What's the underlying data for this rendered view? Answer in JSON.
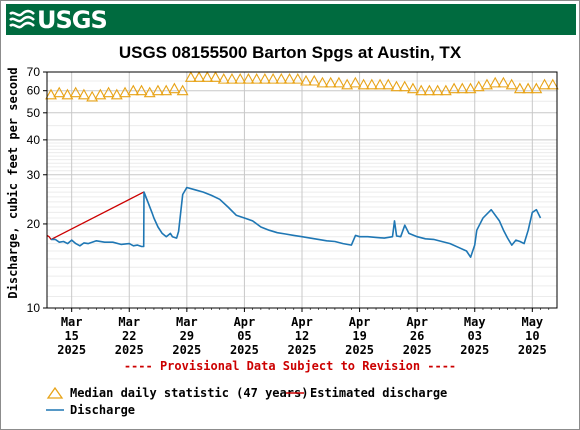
{
  "header": {
    "logo_text": "USGS"
  },
  "chart_data": {
    "type": "line",
    "title": "USGS 08155500 Barton Spgs at Austin, TX",
    "ylabel": "Discharge, cubic feet per second",
    "y_scale": "log",
    "ylim": [
      10,
      70
    ],
    "y_ticks": [
      {
        "value": 10,
        "label": "10"
      },
      {
        "value": 20,
        "label": "20"
      },
      {
        "value": 30,
        "label": "30"
      },
      {
        "value": 40,
        "label": "40"
      },
      {
        "value": 50,
        "label": "50"
      },
      {
        "value": 60,
        "label": "60"
      },
      {
        "value": 70,
        "label": "70"
      }
    ],
    "xlim": [
      "2025-03-12",
      "2025-05-13"
    ],
    "x_ticks": [
      {
        "date": "2025-03-15",
        "label": [
          "Mar",
          "15",
          "2025"
        ]
      },
      {
        "date": "2025-03-22",
        "label": [
          "Mar",
          "22",
          "2025"
        ]
      },
      {
        "date": "2025-03-29",
        "label": [
          "Mar",
          "29",
          "2025"
        ]
      },
      {
        "date": "2025-04-05",
        "label": [
          "Apr",
          "05",
          "2025"
        ]
      },
      {
        "date": "2025-04-12",
        "label": [
          "Apr",
          "12",
          "2025"
        ]
      },
      {
        "date": "2025-04-19",
        "label": [
          "Apr",
          "19",
          "2025"
        ]
      },
      {
        "date": "2025-04-26",
        "label": [
          "Apr",
          "26",
          "2025"
        ]
      },
      {
        "date": "2025-05-03",
        "label": [
          "May",
          "03",
          "2025"
        ]
      },
      {
        "date": "2025-05-10",
        "label": [
          "May",
          "10",
          "2025"
        ]
      }
    ],
    "grid": true,
    "annotation": "---- Provisional Data Subject to Revision ----",
    "series": [
      {
        "name": "Median daily statistic (47 years)",
        "kind": "median",
        "color": "#e8a317",
        "points": [
          [
            "2025-03-12",
            58
          ],
          [
            "2025-03-13",
            59
          ],
          [
            "2025-03-14",
            58
          ],
          [
            "2025-03-15",
            59
          ],
          [
            "2025-03-16",
            58
          ],
          [
            "2025-03-17",
            57
          ],
          [
            "2025-03-18",
            58
          ],
          [
            "2025-03-19",
            59
          ],
          [
            "2025-03-20",
            58
          ],
          [
            "2025-03-21",
            59
          ],
          [
            "2025-03-22",
            60
          ],
          [
            "2025-03-23",
            60
          ],
          [
            "2025-03-24",
            59
          ],
          [
            "2025-03-25",
            60
          ],
          [
            "2025-03-26",
            60
          ],
          [
            "2025-03-27",
            61
          ],
          [
            "2025-03-28",
            60
          ],
          [
            "2025-03-29",
            67
          ],
          [
            "2025-03-30",
            67
          ],
          [
            "2025-03-31",
            67
          ],
          [
            "2025-04-01",
            67
          ],
          [
            "2025-04-02",
            66
          ],
          [
            "2025-04-03",
            66
          ],
          [
            "2025-04-04",
            66
          ],
          [
            "2025-04-05",
            66
          ],
          [
            "2025-04-06",
            66
          ],
          [
            "2025-04-07",
            66
          ],
          [
            "2025-04-08",
            66
          ],
          [
            "2025-04-09",
            66
          ],
          [
            "2025-04-10",
            66
          ],
          [
            "2025-04-11",
            66
          ],
          [
            "2025-04-12",
            65
          ],
          [
            "2025-04-13",
            65
          ],
          [
            "2025-04-14",
            64
          ],
          [
            "2025-04-15",
            64
          ],
          [
            "2025-04-16",
            64
          ],
          [
            "2025-04-17",
            63
          ],
          [
            "2025-04-18",
            64
          ],
          [
            "2025-04-19",
            63
          ],
          [
            "2025-04-20",
            63
          ],
          [
            "2025-04-21",
            63
          ],
          [
            "2025-04-22",
            63
          ],
          [
            "2025-04-23",
            62
          ],
          [
            "2025-04-24",
            62
          ],
          [
            "2025-04-25",
            61
          ],
          [
            "2025-04-26",
            60
          ],
          [
            "2025-04-27",
            60
          ],
          [
            "2025-04-28",
            60
          ],
          [
            "2025-04-29",
            60
          ],
          [
            "2025-04-30",
            61
          ],
          [
            "2025-05-01",
            61
          ],
          [
            "2025-05-02",
            61
          ],
          [
            "2025-05-03",
            62
          ],
          [
            "2025-05-04",
            63
          ],
          [
            "2025-05-05",
            64
          ],
          [
            "2025-05-06",
            64
          ],
          [
            "2025-05-07",
            63
          ],
          [
            "2025-05-08",
            61
          ],
          [
            "2025-05-09",
            61
          ],
          [
            "2025-05-10",
            61
          ],
          [
            "2025-05-11",
            63
          ],
          [
            "2025-05-12",
            63
          ]
        ]
      },
      {
        "name": "Estimated discharge",
        "kind": "estimated",
        "color": "#cc0000",
        "points": [
          [
            "2025-03-12T00:00",
            18.2
          ],
          [
            "2025-03-12T06:00",
            18.0
          ],
          [
            "2025-03-12T12:00",
            17.6
          ],
          [
            "2025-03-23T18:00",
            26.0
          ],
          [
            "2025-03-24T00:00",
            25.0
          ],
          [
            "2025-03-24T06:00",
            24.0
          ]
        ]
      },
      {
        "name": "Discharge",
        "kind": "observed",
        "color": "#1f77b4",
        "points": [
          [
            "2025-03-12T12:00",
            17.6
          ],
          [
            "2025-03-13",
            17.6
          ],
          [
            "2025-03-13T12:00",
            17.2
          ],
          [
            "2025-03-14",
            17.3
          ],
          [
            "2025-03-14T12:00",
            17.0
          ],
          [
            "2025-03-15",
            17.5
          ],
          [
            "2025-03-15T12:00",
            17.0
          ],
          [
            "2025-03-16",
            16.7
          ],
          [
            "2025-03-16T12:00",
            17.1
          ],
          [
            "2025-03-17",
            17.0
          ],
          [
            "2025-03-18",
            17.4
          ],
          [
            "2025-03-19",
            17.2
          ],
          [
            "2025-03-20",
            17.2
          ],
          [
            "2025-03-21",
            16.9
          ],
          [
            "2025-03-22",
            17.0
          ],
          [
            "2025-03-22T12:00",
            16.7
          ],
          [
            "2025-03-23",
            16.8
          ],
          [
            "2025-03-23T12:00",
            16.6
          ],
          [
            "2025-03-23T18:00",
            16.6
          ],
          [
            "2025-03-23T19:00",
            26.0
          ],
          [
            "2025-03-24T06:00",
            24.0
          ],
          [
            "2025-03-24T18:00",
            22.0
          ],
          [
            "2025-03-25",
            21.0
          ],
          [
            "2025-03-25T12:00",
            19.5
          ],
          [
            "2025-03-26",
            18.5
          ],
          [
            "2025-03-26T12:00",
            18.0
          ],
          [
            "2025-03-27",
            18.5
          ],
          [
            "2025-03-27T06:00",
            18.0
          ],
          [
            "2025-03-27T18:00",
            17.8
          ],
          [
            "2025-03-28",
            18.8
          ],
          [
            "2025-03-28T06:00",
            22.0
          ],
          [
            "2025-03-28T12:00",
            25.5
          ],
          [
            "2025-03-29",
            27.0
          ],
          [
            "2025-03-30",
            26.5
          ],
          [
            "2025-03-31",
            26.0
          ],
          [
            "2025-04-01",
            25.3
          ],
          [
            "2025-04-02",
            24.5
          ],
          [
            "2025-04-03",
            23.0
          ],
          [
            "2025-04-04",
            21.5
          ],
          [
            "2025-04-05",
            21.0
          ],
          [
            "2025-04-06",
            20.5
          ],
          [
            "2025-04-07",
            19.5
          ],
          [
            "2025-04-08",
            19.0
          ],
          [
            "2025-04-09",
            18.6
          ],
          [
            "2025-04-10",
            18.4
          ],
          [
            "2025-04-11",
            18.2
          ],
          [
            "2025-04-12",
            18.0
          ],
          [
            "2025-04-13",
            17.8
          ],
          [
            "2025-04-14",
            17.6
          ],
          [
            "2025-04-15",
            17.4
          ],
          [
            "2025-04-16",
            17.3
          ],
          [
            "2025-04-17",
            17.0
          ],
          [
            "2025-04-18",
            16.8
          ],
          [
            "2025-04-18T12:00",
            18.2
          ],
          [
            "2025-04-19",
            18.0
          ],
          [
            "2025-04-20",
            18.0
          ],
          [
            "2025-04-21",
            17.9
          ],
          [
            "2025-04-22",
            17.8
          ],
          [
            "2025-04-23",
            18.0
          ],
          [
            "2025-04-23T06:00",
            20.5
          ],
          [
            "2025-04-23T12:00",
            18.1
          ],
          [
            "2025-04-24",
            18.0
          ],
          [
            "2025-04-24T12:00",
            19.8
          ],
          [
            "2025-04-25",
            18.5
          ],
          [
            "2025-04-26",
            18.0
          ],
          [
            "2025-04-27",
            17.7
          ],
          [
            "2025-04-28",
            17.6
          ],
          [
            "2025-04-29",
            17.3
          ],
          [
            "2025-04-30",
            17.0
          ],
          [
            "2025-05-01",
            16.5
          ],
          [
            "2025-05-02",
            16.0
          ],
          [
            "2025-05-02T12:00",
            15.2
          ],
          [
            "2025-05-03",
            16.8
          ],
          [
            "2025-05-03T06:00",
            19.0
          ],
          [
            "2025-05-04",
            21.0
          ],
          [
            "2025-05-05",
            22.5
          ],
          [
            "2025-05-06",
            20.5
          ],
          [
            "2025-05-06T12:00",
            19.0
          ],
          [
            "2025-05-07",
            17.8
          ],
          [
            "2025-05-07T12:00",
            16.8
          ],
          [
            "2025-05-08",
            17.5
          ],
          [
            "2025-05-08T12:00",
            17.3
          ],
          [
            "2025-05-09",
            17.0
          ],
          [
            "2025-05-09T12:00",
            19.0
          ],
          [
            "2025-05-10",
            22.0
          ],
          [
            "2025-05-10T12:00",
            22.5
          ],
          [
            "2025-05-11",
            21.0
          ]
        ]
      }
    ]
  },
  "legend": {
    "median_label": "Median daily statistic (47 years)",
    "estimated_label": "Estimated discharge",
    "discharge_label": "Discharge"
  }
}
